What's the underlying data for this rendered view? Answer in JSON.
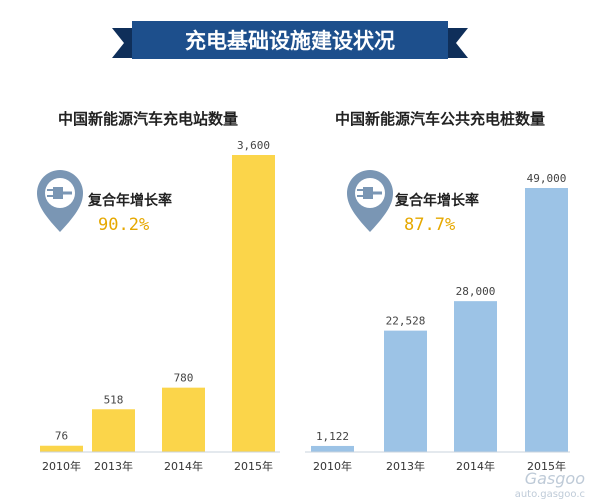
{
  "banner": {
    "title": "充电基础设施建设状况"
  },
  "colors": {
    "banner": "#1d4f8c",
    "banner_dark": "#0f2f5a",
    "bar_yellow": "#fbd54a",
    "bar_blue": "#9cc3e6",
    "icon_pin": "#7a96b4",
    "value_text": "#e6a800",
    "axis": "#c8d3de"
  },
  "icon": {
    "name": "charging-plug-pin-icon"
  },
  "watermark": {
    "line1": "Gasgoo",
    "line2": "auto.gasgoo.c"
  },
  "chart_data": [
    {
      "type": "bar",
      "title": "中国新能源汽车充电站数量",
      "categories": [
        "2010年",
        "2013年",
        "2014年",
        "2015年"
      ],
      "values": [
        76,
        518,
        780,
        3600
      ],
      "value_labels": [
        "76",
        "518",
        "780",
        "3,600"
      ],
      "ylim": [
        0,
        3600
      ],
      "grid": false,
      "cagr_label": "复合年增长率",
      "cagr_value": "90.2%",
      "color": "#fbd54a"
    },
    {
      "type": "bar",
      "title": "中国新能源汽车公共充电桩数量",
      "categories": [
        "2010年",
        "2013年",
        "2014年",
        "2015年"
      ],
      "values": [
        1122,
        22528,
        28000,
        49000
      ],
      "value_labels": [
        "1,122",
        "22,528",
        "28,000",
        "49,000"
      ],
      "ylim": [
        0,
        49000
      ],
      "grid": false,
      "cagr_label": "复合年增长率",
      "cagr_value": "87.7%",
      "color": "#9cc3e6"
    }
  ]
}
